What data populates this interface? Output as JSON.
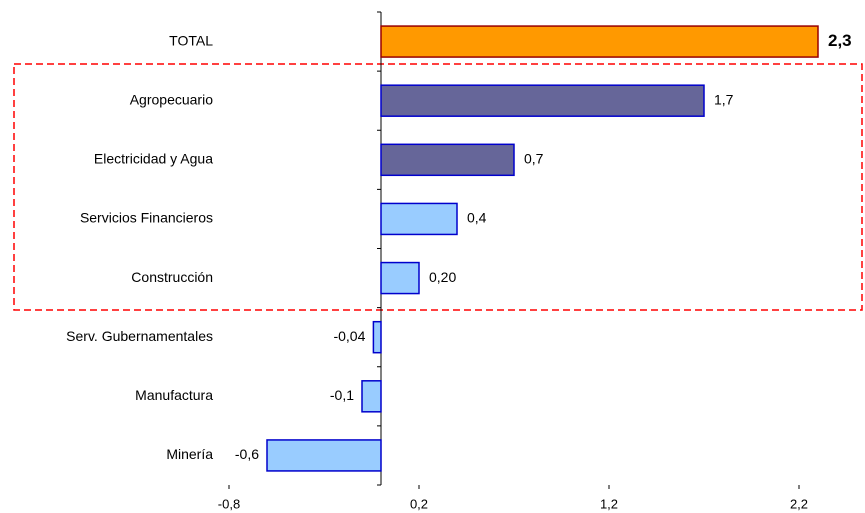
{
  "chart_data": {
    "type": "hbar",
    "categories": [
      "TOTAL",
      "Agropecuario",
      "Electricidad y Agua",
      "Servicios Financieros",
      "Construcción",
      "Serv. Gubernamentales",
      "Manufactura",
      "Minería"
    ],
    "values": [
      2.3,
      1.7,
      0.7,
      0.4,
      0.2,
      -0.04,
      -0.1,
      -0.6
    ],
    "value_labels": [
      "2,3",
      "1,7",
      "0,7",
      "0,4",
      "0,20",
      "-0,04",
      "-0,1",
      "-0,6"
    ],
    "colors": [
      "#ff9900",
      "#666699",
      "#666699",
      "#99ccff",
      "#99ccff",
      "#99ccff",
      "#99ccff",
      "#99ccff"
    ],
    "border_colors": [
      "#990000",
      "#0000cc",
      "#0000cc",
      "#0000cc",
      "#0000cc",
      "#0000cc",
      "#0000cc",
      "#0000cc"
    ],
    "xlim": [
      -0.8,
      2.4
    ],
    "xticks": [
      {
        "value": -0.8,
        "label": "-0,8"
      },
      {
        "value": 0.2,
        "label": "0,2"
      },
      {
        "value": 1.2,
        "label": "1,2"
      },
      {
        "value": 2.2,
        "label": "2,2"
      }
    ]
  }
}
